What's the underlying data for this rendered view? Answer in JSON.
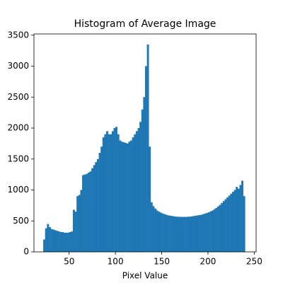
{
  "chart_data": {
    "type": "histogram",
    "title": "Histogram of Average Image",
    "x_label": "Pixel Value",
    "color": "#1f77b4",
    "bins": [
      22,
      24,
      26,
      28,
      30,
      32,
      34,
      36,
      38,
      40,
      42,
      44,
      46,
      48,
      50,
      52,
      54,
      56,
      58,
      60,
      62,
      64,
      66,
      68,
      70,
      72,
      74,
      76,
      78,
      80,
      82,
      84,
      86,
      88,
      90,
      92,
      94,
      96,
      98,
      100,
      102,
      104,
      106,
      108,
      110,
      112,
      114,
      116,
      118,
      120,
      122,
      124,
      126,
      128,
      130,
      132,
      134,
      136,
      138,
      140,
      142,
      144,
      146,
      148,
      150,
      152,
      154,
      156,
      158,
      160,
      162,
      164,
      166,
      168,
      170,
      172,
      174,
      176,
      178,
      180,
      182,
      184,
      186,
      188,
      190,
      192,
      194,
      196,
      198,
      200,
      202,
      204,
      206,
      208,
      210,
      212,
      214,
      216,
      218,
      220,
      222,
      224,
      226,
      228,
      230,
      232,
      234,
      236,
      238,
      240
    ],
    "values": [
      200,
      380,
      450,
      400,
      370,
      360,
      350,
      340,
      330,
      320,
      320,
      310,
      310,
      310,
      320,
      330,
      680,
      650,
      900,
      920,
      1000,
      1240,
      1250,
      1260,
      1280,
      1300,
      1350,
      1400,
      1450,
      1500,
      1600,
      1700,
      1850,
      1900,
      1950,
      1900,
      1900,
      1950,
      2000,
      2020,
      1900,
      1800,
      1780,
      1770,
      1760,
      1750,
      1780,
      1800,
      1850,
      1900,
      1950,
      2000,
      2100,
      2300,
      2500,
      3000,
      3350,
      1700,
      800,
      740,
      700,
      670,
      650,
      635,
      620,
      610,
      600,
      590,
      585,
      580,
      575,
      570,
      568,
      566,
      565,
      565,
      565,
      566,
      568,
      570,
      575,
      580,
      585,
      590,
      595,
      600,
      610,
      620,
      630,
      640,
      655,
      670,
      690,
      710,
      735,
      760,
      790,
      820,
      850,
      880,
      910,
      940,
      970,
      1000,
      1050,
      1020,
      1080,
      1150,
      900
    ],
    "xlim": [
      12,
      252
    ],
    "xticks": [
      50,
      100,
      150,
      200,
      250
    ],
    "ylim": [
      0,
      3520
    ],
    "yticks": [
      0,
      500,
      1000,
      1500,
      2000,
      2500,
      3000,
      3500
    ]
  }
}
